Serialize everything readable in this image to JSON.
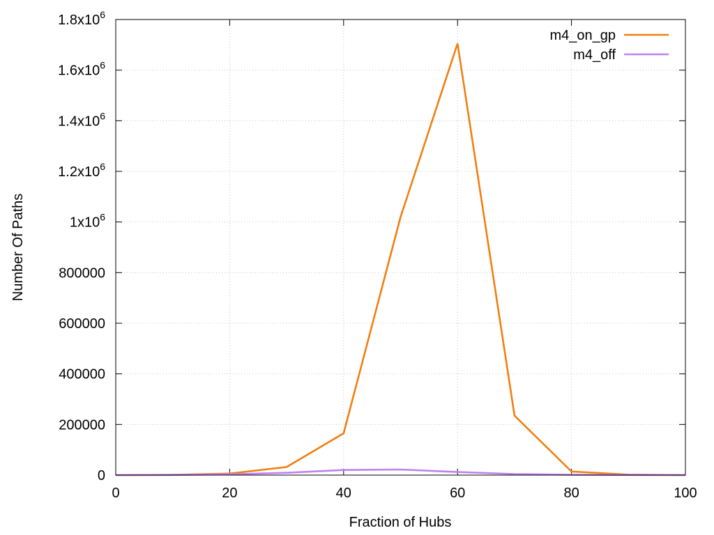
{
  "chart_data": {
    "type": "line",
    "title": "",
    "xlabel": "Fraction of Hubs",
    "ylabel": "Number Of Paths",
    "xlim": [
      0,
      100
    ],
    "ylim": [
      0,
      1800000
    ],
    "x_ticks": [
      {
        "value": 0,
        "label": "0"
      },
      {
        "value": 20,
        "label": "20"
      },
      {
        "value": 40,
        "label": "40"
      },
      {
        "value": 60,
        "label": "60"
      },
      {
        "value": 80,
        "label": "80"
      },
      {
        "value": 100,
        "label": "100"
      }
    ],
    "y_ticks": [
      {
        "value": 0,
        "label": "0",
        "sup": ""
      },
      {
        "value": 200000,
        "label": "200000",
        "sup": ""
      },
      {
        "value": 400000,
        "label": "400000",
        "sup": ""
      },
      {
        "value": 600000,
        "label": "600000",
        "sup": ""
      },
      {
        "value": 800000,
        "label": "800000",
        "sup": ""
      },
      {
        "value": 1000000,
        "label": "1x10",
        "sup": "6"
      },
      {
        "value": 1200000,
        "label": "1.2x10",
        "sup": "6"
      },
      {
        "value": 1400000,
        "label": "1.4x10",
        "sup": "6"
      },
      {
        "value": 1600000,
        "label": "1.6x10",
        "sup": "6"
      },
      {
        "value": 1800000,
        "label": "1.8x10",
        "sup": "6"
      }
    ],
    "grid": true,
    "legend_position": "top-right",
    "x": [
      0,
      10,
      20,
      30,
      40,
      50,
      60,
      70,
      80,
      90,
      100
    ],
    "series": [
      {
        "name": "m4_on_gp",
        "color": "#f07f10",
        "values": [
          0,
          1000,
          6000,
          32000,
          165000,
          1020000,
          1705000,
          235000,
          14000,
          2000,
          0
        ]
      },
      {
        "name": "m4_off",
        "color": "#c080f0",
        "values": [
          0,
          500,
          3000,
          9000,
          20000,
          22000,
          12000,
          4000,
          1500,
          500,
          0
        ]
      }
    ]
  }
}
